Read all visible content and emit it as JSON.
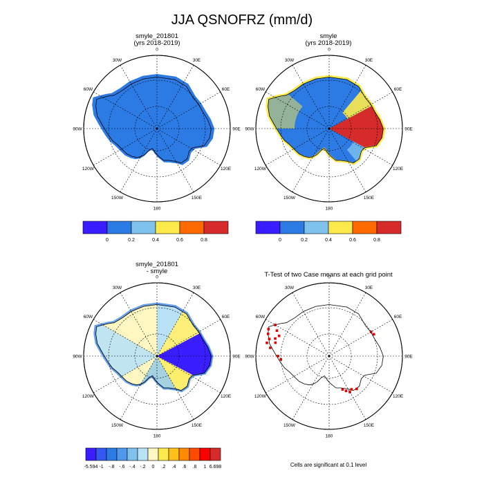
{
  "title": "JJA QSNOFRZ (mm/d)",
  "panels": [
    {
      "title": "smyle_201801",
      "subtitle": "(yrs 2018-2019)"
    },
    {
      "title": "smyle",
      "subtitle": "(yrs 2018-2019)"
    },
    {
      "title": "smyle_201801",
      "subtitle": "- smyle"
    },
    {
      "title": "T-Test of two Case means at each grid point",
      "subtitle": ""
    }
  ],
  "lon_labels": [
    "0",
    "30E",
    "60E",
    "90E",
    "120E",
    "150E",
    "180",
    "150W",
    "120W",
    "90W",
    "60W",
    "30W"
  ],
  "colorbar_top": {
    "colors": [
      "#3b1eff",
      "#2c7be5",
      "#7fc2ee",
      "#fce94a",
      "#ff6a00",
      "#d62b2b"
    ],
    "labels": [
      "0",
      "0.2",
      "0.4",
      "0.6",
      "0.8"
    ]
  },
  "colorbar_diff": {
    "colors": [
      "#3b1eff",
      "#3558f0",
      "#2c7be5",
      "#4f98ee",
      "#7fc2ee",
      "#b9e2f6",
      "#fff7c2",
      "#fce94a",
      "#fdbf1a",
      "#ff8a00",
      "#ff4b00",
      "#ff0000",
      "#d62b2b"
    ],
    "labels": [
      "-5.594",
      "-1",
      "-.8",
      "-.6",
      "-.4",
      "-.2",
      "0",
      ".2",
      ".4",
      ".6",
      ".8",
      "1",
      "6.698"
    ]
  },
  "footnote": "Cells are significant at 0.1 level",
  "chart_data": [
    {
      "type": "heatmap",
      "title": "smyle_201801",
      "subtitle": "(yrs 2018-2019)",
      "field": "QSNOFRZ",
      "season": "JJA",
      "units": "mm/d",
      "projection": "south polar stereographic",
      "dominant_range": [
        0,
        0.2
      ]
    },
    {
      "type": "heatmap",
      "title": "smyle",
      "subtitle": "(yrs 2018-2019)",
      "field": "QSNOFRZ",
      "season": "JJA",
      "units": "mm/d",
      "projection": "south polar stereographic",
      "dominant_range": [
        0,
        0.2
      ],
      "max_region": "60E-120E, > 1"
    },
    {
      "type": "heatmap",
      "title": "smyle_201801",
      "subtitle": "- smyle",
      "min": -5.594,
      "max": 6.698,
      "projection": "south polar stereographic"
    },
    {
      "type": "heatmap",
      "title": "T-Test of two Case means at each grid point",
      "significance_level": 0.1,
      "projection": "south polar stereographic"
    }
  ]
}
